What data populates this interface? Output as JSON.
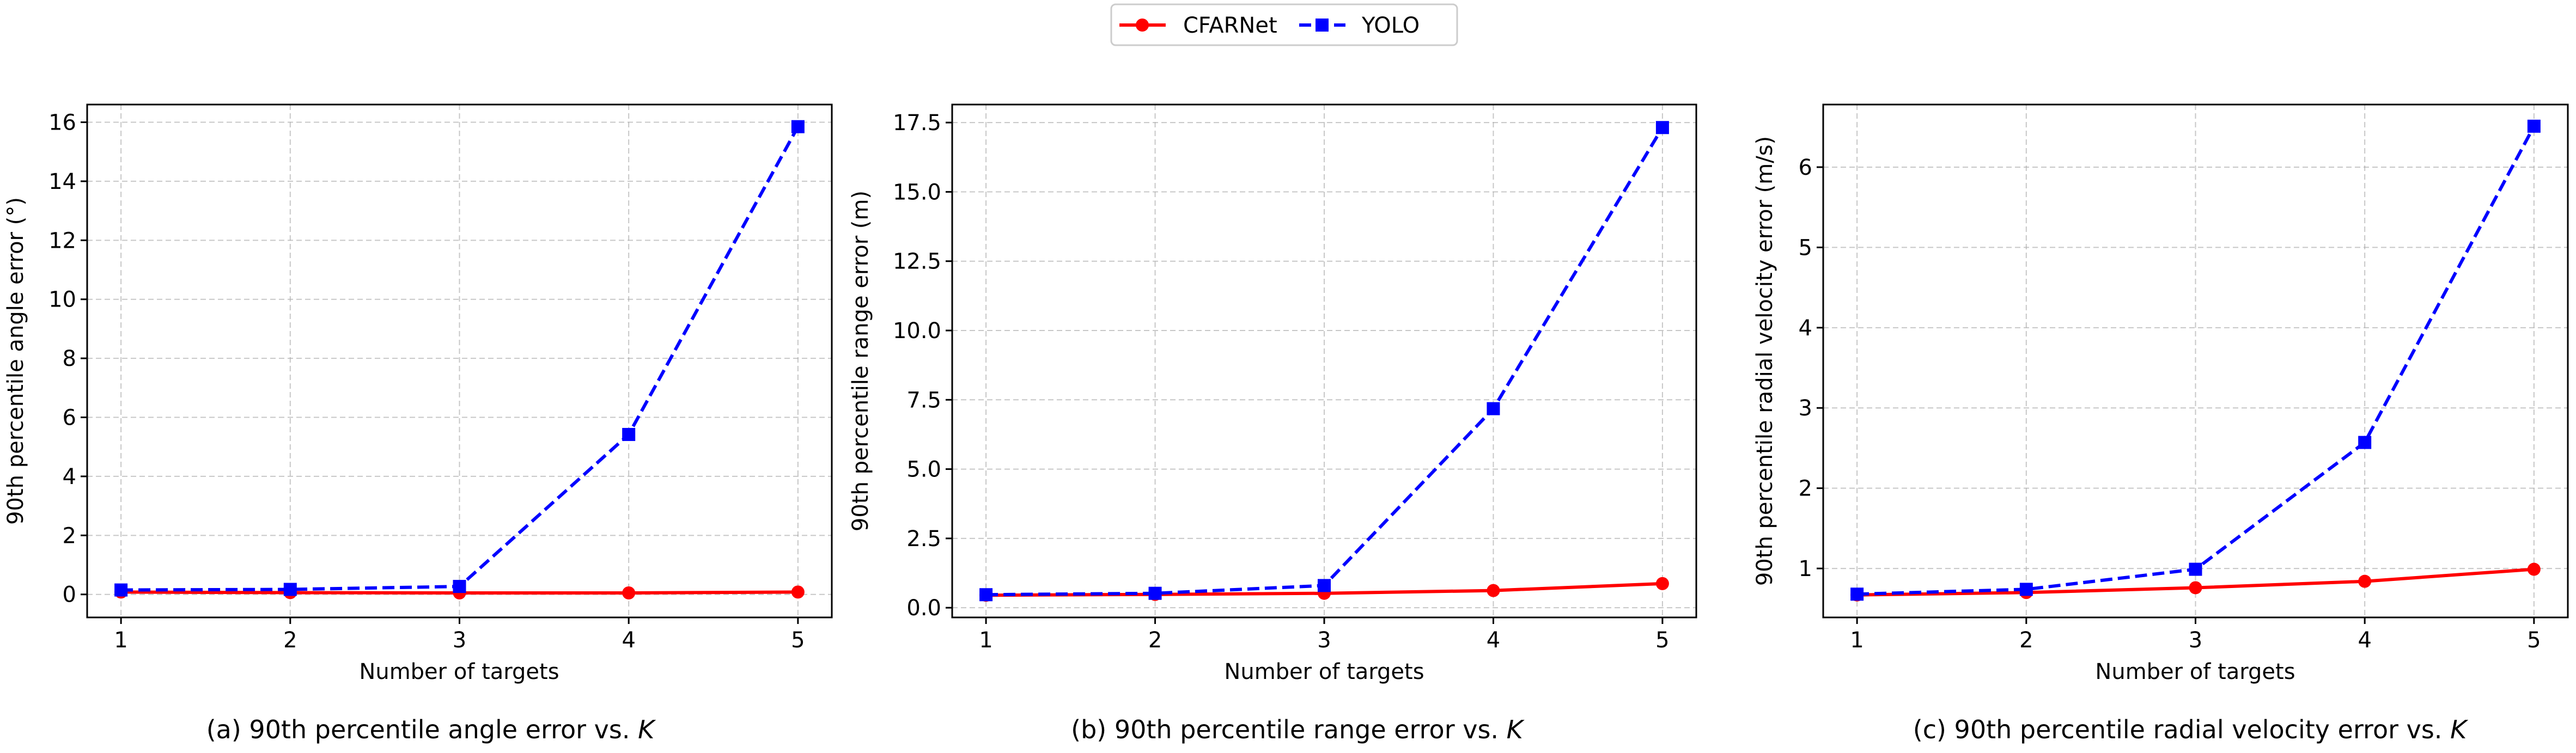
{
  "legend": {
    "entries": [
      {
        "name": "CFARNet",
        "color": "#ff0000",
        "marker": "circle",
        "dash": "solid"
      },
      {
        "name": "YOLO",
        "color": "#0000ff",
        "marker": "square",
        "dash": "dashed"
      }
    ],
    "placement": "top-center"
  },
  "chart_data": [
    {
      "type": "line",
      "xlabel": "Number of targets",
      "ylabel": "90th percentile angle error (°)",
      "caption_prefix": "(a) 90th percentile angle error vs. ",
      "caption_var": "K",
      "x": [
        1,
        2,
        3,
        4,
        5
      ],
      "xlim": [
        0.8,
        5.2
      ],
      "ylim": [
        -0.78,
        16.6
      ],
      "yticks": [
        0,
        2,
        4,
        6,
        8,
        10,
        12,
        14,
        16
      ],
      "ytick_labels": [
        "0",
        "2",
        "4",
        "6",
        "8",
        "10",
        "12",
        "14",
        "16"
      ],
      "grid": true,
      "series": [
        {
          "name": "CFARNet",
          "values": [
            0.08,
            0.06,
            0.05,
            0.05,
            0.08
          ]
        },
        {
          "name": "YOLO",
          "values": [
            0.15,
            0.17,
            0.27,
            5.42,
            15.85
          ]
        }
      ]
    },
    {
      "type": "line",
      "xlabel": "Number of targets",
      "ylabel": "90th percentile range error (m)",
      "caption_prefix": "(b) 90th percentile range error vs. ",
      "caption_var": "K",
      "x": [
        1,
        2,
        3,
        4,
        5
      ],
      "xlim": [
        0.8,
        5.2
      ],
      "ylim": [
        -0.35,
        18.15
      ],
      "yticks": [
        0,
        2.5,
        5,
        7.5,
        10,
        12.5,
        15,
        17.5
      ],
      "ytick_labels": [
        "0.0",
        "2.5",
        "5.0",
        "7.5",
        "10.0",
        "12.5",
        "15.0",
        "17.5"
      ],
      "grid": true,
      "series": [
        {
          "name": "CFARNet",
          "values": [
            0.45,
            0.48,
            0.52,
            0.62,
            0.87
          ]
        },
        {
          "name": "YOLO",
          "values": [
            0.47,
            0.52,
            0.8,
            7.18,
            17.32
          ]
        }
      ]
    },
    {
      "type": "line",
      "xlabel": "Number of targets",
      "ylabel": "90th percentile radial velocity error (m/s)",
      "caption_prefix": "(c) 90th percentile radial velocity error vs. ",
      "caption_var": "K",
      "x": [
        1,
        2,
        3,
        4,
        5
      ],
      "xlim": [
        0.8,
        5.2
      ],
      "ylim": [
        0.39,
        6.78
      ],
      "yticks": [
        1,
        2,
        3,
        4,
        5,
        6
      ],
      "ytick_labels": [
        "1",
        "2",
        "3",
        "4",
        "5",
        "6"
      ],
      "grid": true,
      "series": [
        {
          "name": "CFARNet",
          "values": [
            0.67,
            0.7,
            0.76,
            0.84,
            0.99
          ]
        },
        {
          "name": "YOLO",
          "values": [
            0.68,
            0.74,
            0.99,
            2.57,
            6.51
          ]
        }
      ]
    }
  ]
}
